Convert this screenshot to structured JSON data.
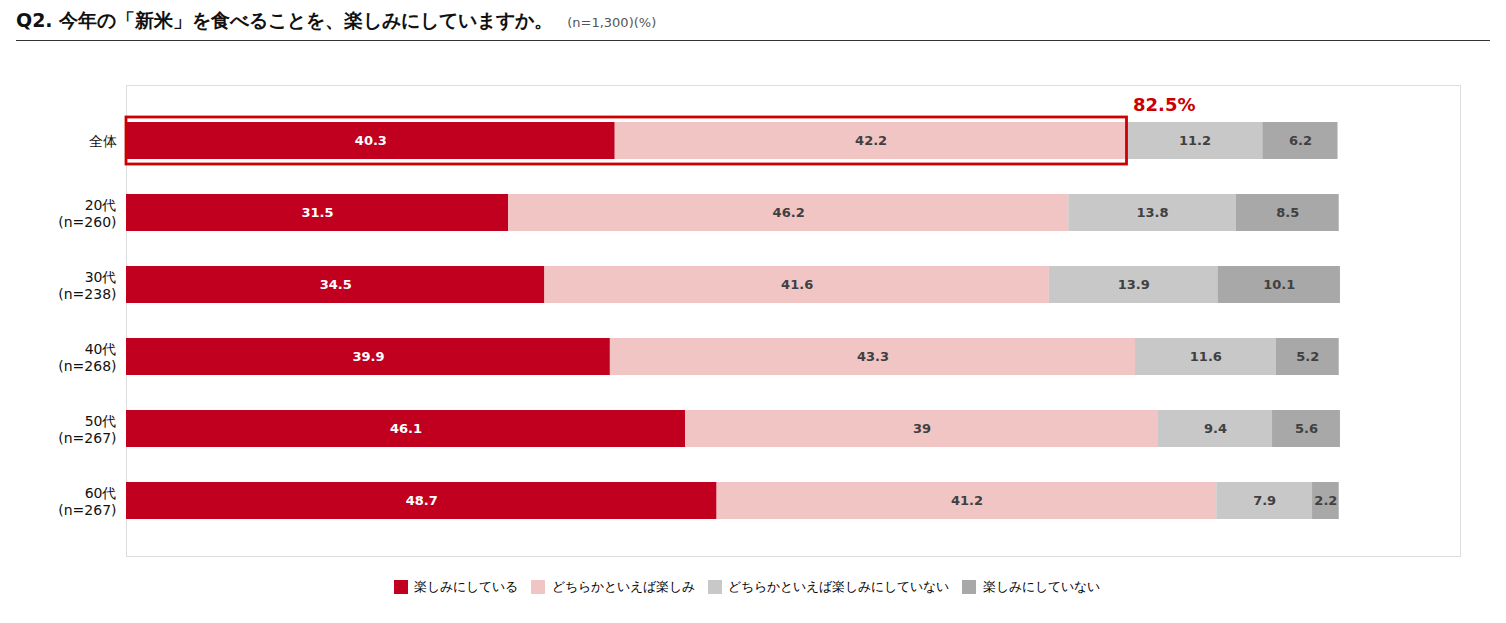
{
  "chart_data": {
    "type": "bar",
    "orientation": "horizontal",
    "stacked": true,
    "title": "Q2. 今年の「新米」を食べることを、楽しみにしていますか。",
    "subtitle": "(n=1,300)(%)",
    "categories": [
      "全体",
      "20代\n(n=260)",
      "30代\n(n=238)",
      "40代\n(n=268)",
      "50代\n(n=267)",
      "60代\n(n=267)"
    ],
    "series": [
      {
        "name": "楽しみにしている",
        "color": "#c0001e",
        "values": [
          40.3,
          31.5,
          34.5,
          39.9,
          46.1,
          48.7
        ]
      },
      {
        "name": "どちらかといえば楽しみ",
        "color": "#f2c5c5",
        "values": [
          42.2,
          46.2,
          41.6,
          43.3,
          39,
          41.2
        ]
      },
      {
        "name": "どちらかといえば楽しみにしていない",
        "color": "#c8c8c8",
        "values": [
          11.2,
          13.8,
          13.9,
          11.6,
          9.4,
          7.9
        ]
      },
      {
        "name": "楽しみにしていない",
        "color": "#a8a8a8",
        "values": [
          6.2,
          8.5,
          10.1,
          5.2,
          5.6,
          2.2
        ]
      }
    ],
    "xlim": [
      0,
      110
    ],
    "tick_labels": "y",
    "data_labels": true,
    "grid": false,
    "legend": "bottom",
    "annotations": [
      {
        "text": "82.5%",
        "category": "全体",
        "x": 82.5,
        "color": "#cc0000"
      }
    ]
  }
}
